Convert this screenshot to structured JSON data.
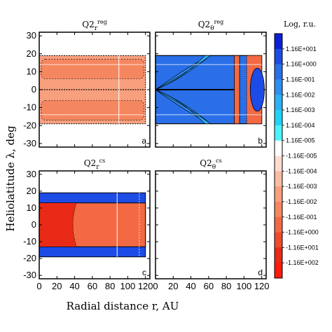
{
  "chart_data": {
    "type": "heatmap",
    "xlabel": "Radial distance r, AU",
    "ylabel": "Heliolatitude λ, deg",
    "xlim": [
      0,
      125
    ],
    "ylim": [
      -32,
      32
    ],
    "xticks": [
      0,
      20,
      40,
      60,
      80,
      100,
      120
    ],
    "yticks": [
      -30,
      -20,
      -10,
      0,
      10,
      20,
      30
    ],
    "colorbar": {
      "title": "Log, r.u.",
      "levels": [
        "1.16E+001",
        "1.16E+000",
        "1.16E-001",
        "1.16E-002",
        "1.16E-003",
        "1.16E-004",
        "1.16E-005",
        "-1.16E-005",
        "-1.16E-004",
        "-1.16E-003",
        "-1.16E-002",
        "-1.16E-001",
        "-1.16E+000",
        "-1.16E+001",
        "-1.16E+002"
      ],
      "colors": [
        "#0b1fd6",
        "#1d4be6",
        "#2a6fe8",
        "#2f8ef0",
        "#2fb0f3",
        "#20d3f6",
        "#4af4fb",
        "#ffffff",
        "#fddcd0",
        "#fbbba4",
        "#f8a07e",
        "#f58760",
        "#f26944",
        "#ee4a2c",
        "#e82a17",
        "#ff1a0a"
      ]
    },
    "panels": [
      {
        "id": "a",
        "title": "Q2",
        "superscript": "reg",
        "subscript": "r",
        "region": {
          "lat_range": [
            -19,
            19
          ],
          "r_range": [
            0,
            120
          ],
          "dominant": "-1.16E-002"
        }
      },
      {
        "id": "b",
        "title": "Q2",
        "superscript": "reg",
        "subscript": "θ",
        "region": {
          "lat_range": [
            -19,
            19
          ],
          "r_range": [
            0,
            120
          ],
          "dominant": "1.16E-001"
        }
      },
      {
        "id": "c",
        "title": "Q2",
        "superscript": "cs",
        "subscript": "r",
        "region": {
          "lat_range": [
            -19,
            19
          ],
          "r_range": [
            0,
            120
          ],
          "dominant": "-1.16E+000"
        }
      },
      {
        "id": "d",
        "title": "Q2",
        "superscript": "cs",
        "subscript": "θ",
        "region": null
      }
    ]
  },
  "labels": {
    "xlabel": "Radial distance r, AU",
    "ylabel": "Heliolatitude λ, deg",
    "cb_title": "Log, r.u."
  }
}
